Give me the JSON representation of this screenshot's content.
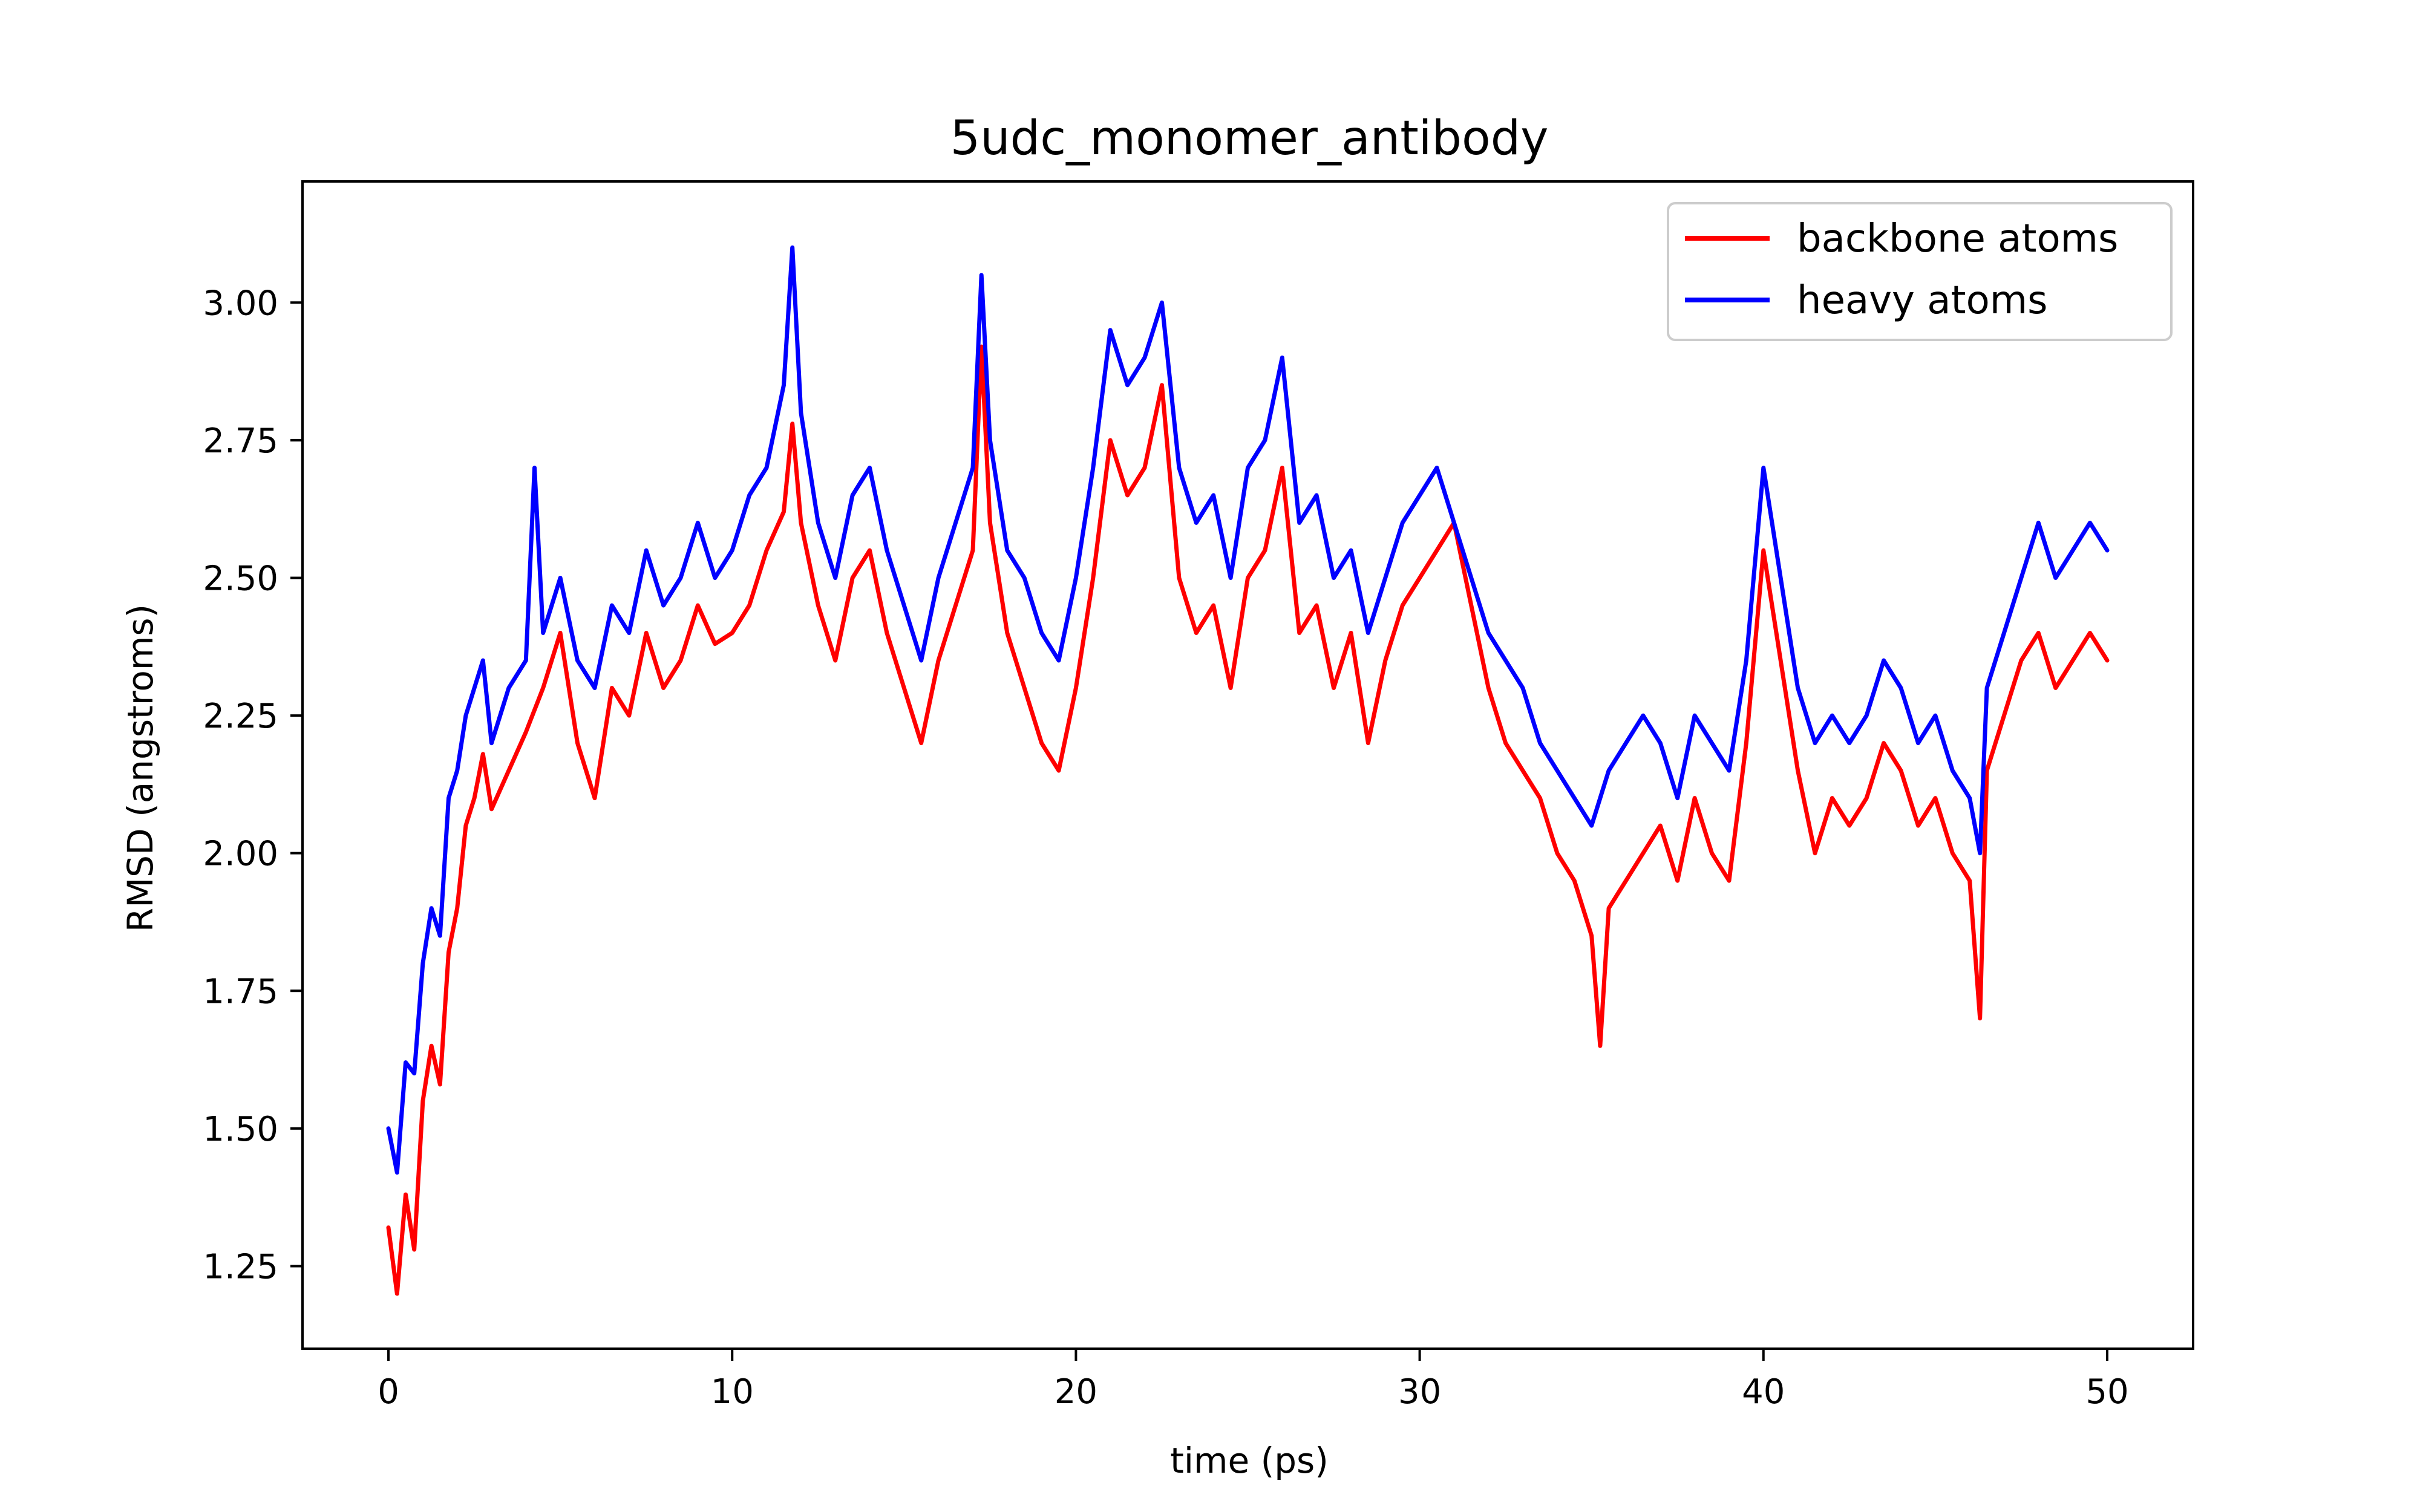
{
  "chart_data": {
    "type": "line",
    "title": "5udc_monomer_antibody",
    "xlabel": "time (ps)",
    "ylabel": "RMSD (angstroms)",
    "xlim": [
      -2.5,
      52.5
    ],
    "ylim": [
      1.1,
      3.22
    ],
    "xticks": [
      0,
      10,
      20,
      30,
      40,
      50
    ],
    "yticks": [
      1.25,
      1.5,
      1.75,
      2.0,
      2.25,
      2.5,
      2.75,
      3.0
    ],
    "xtick_labels": [
      "0",
      "10",
      "20",
      "30",
      "40",
      "50"
    ],
    "ytick_labels": [
      "1.25",
      "1.50",
      "1.75",
      "2.00",
      "2.25",
      "2.50",
      "2.75",
      "3.00"
    ],
    "grid": false,
    "legend_position": "top-right",
    "series": [
      {
        "name": "backbone atoms",
        "color": "#ff0000",
        "x": [
          0,
          0.25,
          0.5,
          0.75,
          1,
          1.25,
          1.5,
          1.75,
          2,
          2.25,
          2.5,
          2.75,
          3,
          3.5,
          4,
          4.5,
          5,
          5.5,
          6,
          6.5,
          7,
          7.5,
          8,
          8.5,
          9,
          9.5,
          10,
          10.5,
          11,
          11.5,
          11.75,
          12,
          12.5,
          13,
          13.5,
          14,
          14.5,
          15,
          15.5,
          16,
          16.5,
          17,
          17.25,
          17.5,
          18,
          18.5,
          19,
          19.5,
          20,
          20.5,
          21,
          21.5,
          22,
          22.5,
          23,
          23.5,
          24,
          24.5,
          25,
          25.5,
          26,
          26.5,
          27,
          27.5,
          28,
          28.5,
          29,
          29.5,
          30,
          30.5,
          31,
          31.5,
          32,
          32.5,
          33,
          33.5,
          34,
          34.5,
          35,
          35.25,
          35.5,
          36,
          36.5,
          37,
          37.5,
          38,
          38.5,
          39,
          39.5,
          40,
          40.5,
          41,
          41.5,
          42,
          42.5,
          43,
          43.5,
          44,
          44.5,
          45,
          45.5,
          46,
          46.3,
          46.5,
          47,
          47.5,
          48,
          48.5,
          49,
          49.5,
          50
        ],
        "y": [
          1.32,
          1.2,
          1.38,
          1.28,
          1.55,
          1.65,
          1.58,
          1.82,
          1.9,
          2.05,
          2.1,
          2.18,
          2.08,
          2.15,
          2.22,
          2.3,
          2.4,
          2.2,
          2.1,
          2.3,
          2.25,
          2.4,
          2.3,
          2.35,
          2.45,
          2.38,
          2.4,
          2.45,
          2.55,
          2.62,
          2.78,
          2.6,
          2.45,
          2.35,
          2.5,
          2.55,
          2.4,
          2.3,
          2.2,
          2.35,
          2.45,
          2.55,
          2.92,
          2.6,
          2.4,
          2.3,
          2.2,
          2.15,
          2.3,
          2.5,
          2.75,
          2.65,
          2.7,
          2.85,
          2.5,
          2.4,
          2.45,
          2.3,
          2.5,
          2.55,
          2.7,
          2.4,
          2.45,
          2.3,
          2.4,
          2.2,
          2.35,
          2.45,
          2.5,
          2.55,
          2.6,
          2.45,
          2.3,
          2.2,
          2.15,
          2.1,
          2.0,
          1.95,
          1.85,
          1.65,
          1.9,
          1.95,
          2.0,
          2.05,
          1.95,
          2.1,
          2.0,
          1.95,
          2.2,
          2.55,
          2.35,
          2.15,
          2.0,
          2.1,
          2.05,
          2.1,
          2.2,
          2.15,
          2.05,
          2.1,
          2.0,
          1.95,
          1.7,
          2.15,
          2.25,
          2.35,
          2.4,
          2.3,
          2.35,
          2.4,
          2.35
        ]
      },
      {
        "name": "heavy atoms",
        "color": "#0000ff",
        "x": [
          0,
          0.25,
          0.5,
          0.75,
          1,
          1.25,
          1.5,
          1.75,
          2,
          2.25,
          2.5,
          2.75,
          3,
          3.5,
          4,
          4.25,
          4.5,
          5,
          5.5,
          6,
          6.5,
          7,
          7.5,
          8,
          8.5,
          9,
          9.5,
          10,
          10.5,
          11,
          11.5,
          11.75,
          12,
          12.5,
          13,
          13.5,
          14,
          14.5,
          15,
          15.5,
          16,
          16.5,
          17,
          17.25,
          17.5,
          18,
          18.5,
          19,
          19.5,
          20,
          20.5,
          21,
          21.5,
          22,
          22.5,
          23,
          23.5,
          24,
          24.5,
          25,
          25.5,
          26,
          26.5,
          27,
          27.5,
          28,
          28.5,
          29,
          29.5,
          30,
          30.5,
          31,
          31.5,
          32,
          32.5,
          33,
          33.5,
          34,
          34.5,
          35,
          35.5,
          36,
          36.5,
          37,
          37.5,
          38,
          38.5,
          39,
          39.5,
          40,
          40.5,
          41,
          41.5,
          42,
          42.5,
          43,
          43.5,
          44,
          44.5,
          45,
          45.5,
          46,
          46.3,
          46.5,
          47,
          47.5,
          48,
          48.5,
          49,
          49.5,
          50
        ],
        "y": [
          1.5,
          1.42,
          1.62,
          1.6,
          1.8,
          1.9,
          1.85,
          2.1,
          2.15,
          2.25,
          2.3,
          2.35,
          2.2,
          2.3,
          2.35,
          2.7,
          2.4,
          2.5,
          2.35,
          2.3,
          2.45,
          2.4,
          2.55,
          2.45,
          2.5,
          2.6,
          2.5,
          2.55,
          2.65,
          2.7,
          2.85,
          3.1,
          2.8,
          2.6,
          2.5,
          2.65,
          2.7,
          2.55,
          2.45,
          2.35,
          2.5,
          2.6,
          2.7,
          3.05,
          2.75,
          2.55,
          2.5,
          2.4,
          2.35,
          2.5,
          2.7,
          2.95,
          2.85,
          2.9,
          3.0,
          2.7,
          2.6,
          2.65,
          2.5,
          2.7,
          2.75,
          2.9,
          2.6,
          2.65,
          2.5,
          2.55,
          2.4,
          2.5,
          2.6,
          2.65,
          2.7,
          2.6,
          2.5,
          2.4,
          2.35,
          2.3,
          2.2,
          2.15,
          2.1,
          2.05,
          2.15,
          2.2,
          2.25,
          2.2,
          2.1,
          2.25,
          2.2,
          2.15,
          2.35,
          2.7,
          2.5,
          2.3,
          2.2,
          2.25,
          2.2,
          2.25,
          2.35,
          2.3,
          2.2,
          2.25,
          2.15,
          2.1,
          2.0,
          2.3,
          2.4,
          2.5,
          2.6,
          2.5,
          2.55,
          2.6,
          2.55
        ]
      }
    ]
  }
}
